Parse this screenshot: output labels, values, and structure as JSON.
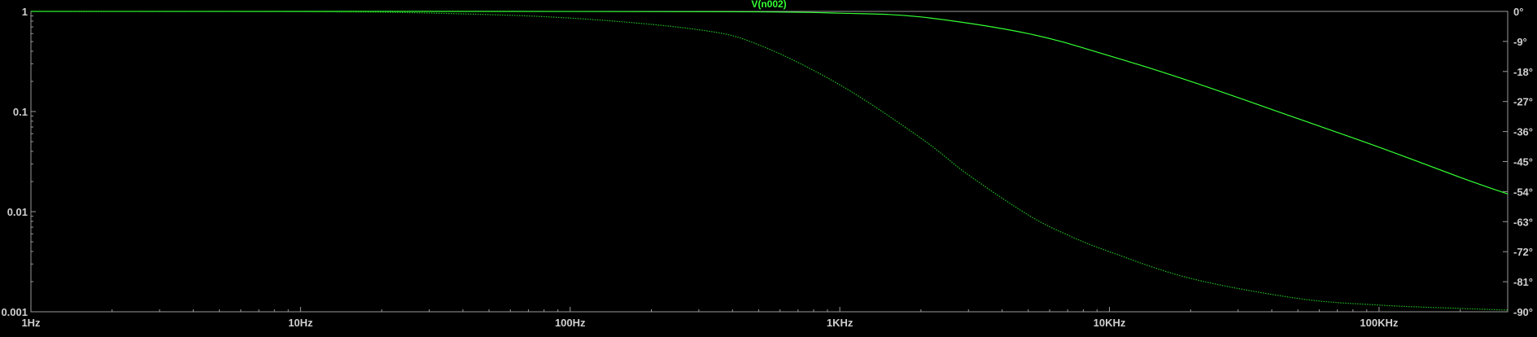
{
  "trace_label": "V(n002)",
  "colors": {
    "background": "#000000",
    "frame": "#9a9a9a",
    "tick_text": "#cfcfcf",
    "trace": "#33ff33",
    "phase_trace": "#1fbf1f"
  },
  "chart_data": {
    "type": "line",
    "title": "V(n002)",
    "x_scale": "log",
    "x_range": [
      1,
      300000
    ],
    "x_ticks": [
      {
        "value": 1,
        "label": "1Hz"
      },
      {
        "value": 10,
        "label": "10Hz"
      },
      {
        "value": 100,
        "label": "100Hz"
      },
      {
        "value": 1000,
        "label": "1KHz"
      },
      {
        "value": 10000,
        "label": "10KHz"
      },
      {
        "value": 100000,
        "label": "100KHz"
      }
    ],
    "y_left": {
      "scale": "log",
      "range": [
        0.001,
        1
      ],
      "ticks": [
        {
          "value": 1,
          "label": "1"
        },
        {
          "value": 0.1,
          "label": "0.1"
        },
        {
          "value": 0.01,
          "label": "0.01"
        },
        {
          "value": 0.001,
          "label": "0.001"
        }
      ]
    },
    "y_right": {
      "scale": "linear",
      "unit": "degrees",
      "range": [
        -90,
        0
      ],
      "ticks": [
        {
          "value": 0,
          "label": "0°"
        },
        {
          "value": -9,
          "label": "-9°"
        },
        {
          "value": -18,
          "label": "-18°"
        },
        {
          "value": -27,
          "label": "-27°"
        },
        {
          "value": -36,
          "label": "-36°"
        },
        {
          "value": -45,
          "label": "-45°"
        },
        {
          "value": -54,
          "label": "-54°"
        },
        {
          "value": -63,
          "label": "-63°"
        },
        {
          "value": -72,
          "label": "-72°"
        },
        {
          "value": -81,
          "label": "-81°"
        },
        {
          "value": -90,
          "label": "-90°"
        }
      ]
    },
    "series": [
      {
        "name": "V(n002)",
        "axis": "left",
        "style": "solid",
        "x": [
          1,
          10,
          100,
          500,
          1000,
          2000,
          5000,
          10000,
          20000,
          50000,
          100000,
          200000,
          300000
        ],
        "y": [
          1,
          1,
          0.999,
          0.99,
          0.96,
          0.88,
          0.6,
          0.36,
          0.2,
          0.085,
          0.044,
          0.022,
          0.015
        ]
      },
      {
        "name": "V(n002) phase",
        "axis": "right",
        "style": "dotted",
        "x": [
          1,
          10,
          30,
          100,
          300,
          500,
          1000,
          2000,
          3000,
          5000,
          7000,
          10000,
          20000,
          50000,
          100000,
          200000,
          300000
        ],
        "y": [
          0,
          -0.1,
          -0.5,
          -2,
          -5.5,
          -10,
          -22,
          -38,
          -49,
          -61,
          -67,
          -72,
          -80,
          -86,
          -88,
          -89,
          -89.5
        ]
      }
    ]
  }
}
